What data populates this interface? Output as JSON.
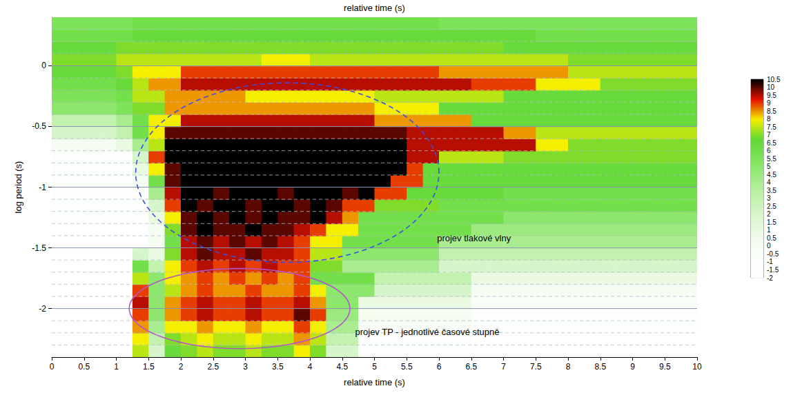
{
  "chart_data": {
    "type": "heatmap",
    "x_label": "relative time (s)",
    "x2_label": "relative time (s)",
    "y_label": "log period (s)",
    "xlim": [
      0,
      10
    ],
    "xticks": [
      0,
      0.5,
      1,
      1.5,
      2,
      2.5,
      3,
      3.5,
      4,
      4.5,
      5,
      5.5,
      6,
      6.5,
      7,
      7.5,
      8,
      8.5,
      9,
      9.5,
      10
    ],
    "ylim": [
      -2.4,
      0.4
    ],
    "yticks": [
      -2,
      -1.5,
      -1,
      -0.5,
      0
    ],
    "grid": true,
    "colorbar": {
      "range": [
        -2,
        10.5
      ],
      "ticks": [
        -2,
        -1.5,
        -1,
        -0.5,
        0,
        0.5,
        1,
        1.5,
        2,
        2.5,
        3,
        3.5,
        4,
        4.5,
        5,
        5.5,
        6,
        6.5,
        7,
        7.5,
        8,
        8.5,
        9,
        9.5,
        10,
        10.5
      ]
    },
    "annotations": [
      {
        "text": "projev tlakové vlny",
        "x": 5.97,
        "y": -1.42
      },
      {
        "text": "projev TP - jednotlivé časové stupně",
        "x": 4.7,
        "y": -2.19
      }
    ],
    "regions": [
      {
        "cx": 3.65,
        "cy": -0.88,
        "rx": 2.35,
        "ry": 0.74,
        "color": "#3b4fe0",
        "line_style": "dashed"
      },
      {
        "cx": 2.91,
        "cy": -2.0,
        "rx": 1.71,
        "ry": 0.33,
        "color": "#b455c8",
        "line_style": "solid"
      }
    ],
    "x": [
      0.125,
      0.375,
      0.625,
      0.875,
      1.125,
      1.375,
      1.625,
      1.875,
      2.125,
      2.375,
      2.625,
      2.875,
      3.125,
      3.375,
      3.625,
      3.875,
      4.125,
      4.375,
      4.625,
      4.875,
      5.125,
      5.375,
      5.625,
      5.875,
      6.125,
      6.375,
      6.625,
      6.875,
      7.125,
      7.375,
      7.625,
      7.875,
      8.125,
      8.375,
      8.625,
      8.875,
      9.125,
      9.375,
      9.625,
      9.875
    ],
    "y": [
      -2.35,
      -2.25,
      -2.15,
      -2.05,
      -1.95,
      -1.85,
      -1.75,
      -1.65,
      -1.55,
      -1.45,
      -1.35,
      -1.25,
      -1.15,
      -1.05,
      -0.95,
      -0.85,
      -0.75,
      -0.65,
      -0.55,
      -0.45,
      -0.35,
      -0.25,
      -0.15,
      -0.05,
      0.05,
      0.15,
      0.25,
      0.35
    ],
    "values": [
      [
        -2,
        -2,
        -2,
        -2,
        -2,
        7.5,
        2,
        6.5,
        7,
        7.5,
        7,
        7,
        7.5,
        7,
        7,
        8,
        7,
        2,
        2,
        -1.5,
        -1.5,
        -1.5,
        -1.5,
        -1.5,
        -1.5,
        -1.5,
        -2,
        -2,
        -2,
        -2,
        -2,
        -2,
        -2,
        -2,
        -2,
        -2,
        -2,
        -2,
        -2,
        -2
      ],
      [
        -2,
        -2,
        -2,
        -2,
        -2,
        8,
        3,
        7,
        7.5,
        8,
        7.5,
        7.5,
        8,
        7.5,
        7.5,
        8.5,
        7.5,
        3,
        3,
        -1,
        -1,
        -1,
        -1,
        -1,
        -1,
        -1,
        -2,
        -2,
        -2,
        -2,
        -2,
        -2,
        -2,
        -2,
        -2,
        -2,
        -2,
        -2,
        -2,
        -2
      ],
      [
        -2,
        -2,
        -2,
        -2,
        -2,
        8.5,
        4,
        8,
        8,
        8.5,
        8,
        8,
        8.5,
        8,
        8,
        9,
        8,
        4,
        4,
        -0.5,
        -0.5,
        -0.5,
        -0.5,
        -0.5,
        -0.5,
        -0.5,
        -1.5,
        -1.5,
        -1.5,
        -1.5,
        -1.5,
        -1.5,
        -1.5,
        -1.5,
        -1.5,
        -1.5,
        -1.5,
        -1.5,
        -1.5,
        -1.5
      ],
      [
        -2,
        -2,
        -2,
        -2,
        -2,
        9,
        5,
        8.5,
        9,
        9.5,
        9,
        9,
        9.5,
        9,
        9,
        10,
        9,
        4.5,
        4.5,
        0,
        0,
        0,
        0,
        0,
        0,
        0,
        -1,
        -1,
        -1,
        -1,
        -1,
        -1,
        -1,
        -1,
        -1,
        -1,
        -1,
        -1,
        -1,
        -1
      ],
      [
        -2,
        -2,
        -2,
        -2,
        -2,
        9.5,
        5,
        8.5,
        9,
        9.5,
        9,
        9,
        9.5,
        9,
        9,
        9.5,
        8.5,
        5,
        5,
        1,
        1,
        1,
        1,
        1,
        1,
        1,
        -0.5,
        -0.5,
        -0.5,
        -0.5,
        -0.5,
        -0.5,
        -0.5,
        -0.5,
        -0.5,
        -0.5,
        -0.5,
        -0.5,
        -0.5,
        -0.5
      ],
      [
        -2,
        -2,
        -2,
        -2,
        -2,
        9,
        5,
        7.5,
        8.5,
        9,
        8.5,
        8.5,
        9,
        8.5,
        8.5,
        9,
        8,
        5,
        5,
        5,
        2,
        2,
        2,
        2,
        2,
        2,
        0,
        0,
        0,
        0,
        0,
        0,
        0,
        0,
        0,
        0,
        0,
        0,
        0,
        0
      ],
      [
        -2,
        -2,
        -2,
        -2,
        -2,
        7.5,
        5,
        8,
        8.5,
        9,
        8.5,
        9,
        8.5,
        9,
        8.5,
        9,
        6,
        6,
        6,
        6,
        3,
        3,
        3,
        3,
        3,
        3,
        1,
        1,
        1,
        1,
        1,
        1,
        1,
        1,
        1,
        1,
        1,
        1,
        1,
        1
      ],
      [
        -2,
        -2,
        -2,
        -2,
        -2,
        6,
        3,
        8,
        9,
        9.5,
        9,
        9.5,
        9,
        9.5,
        9,
        9,
        7,
        7,
        4,
        4,
        4,
        4,
        4,
        4,
        2,
        2,
        2,
        2,
        2,
        2,
        2,
        2,
        2,
        2,
        2,
        2,
        2,
        2,
        2,
        2
      ],
      [
        -2,
        -2,
        -2,
        -2,
        -2,
        2,
        1,
        7,
        9.5,
        10,
        9.5,
        9.5,
        10,
        9.5,
        9.5,
        9,
        7.5,
        7.5,
        5,
        5,
        5,
        5,
        5,
        5,
        3,
        3,
        3,
        3,
        3,
        3,
        3,
        3,
        3,
        3,
        3,
        3,
        3,
        3,
        3,
        3
      ],
      [
        -2,
        -2,
        -2,
        -2,
        -2,
        -2,
        0,
        6,
        9.5,
        10,
        9.5,
        10,
        9.5,
        10,
        9.5,
        9,
        8,
        8,
        6,
        6,
        6,
        6,
        6,
        6,
        4,
        4,
        4,
        4,
        4,
        4,
        4,
        4,
        4,
        4,
        4,
        4,
        4,
        4,
        4,
        4
      ],
      [
        -2,
        -2,
        -2,
        -2,
        -2,
        -2,
        0,
        7,
        10,
        10.5,
        10,
        10,
        10.5,
        10,
        10,
        9.5,
        9,
        8,
        8,
        6,
        6,
        6,
        6,
        6,
        6,
        6,
        4.5,
        4.5,
        4.5,
        4.5,
        4.5,
        4.5,
        4.5,
        4.5,
        4.5,
        4.5,
        4.5,
        4.5,
        4.5,
        4.5
      ],
      [
        -1.5,
        -1.5,
        -1.5,
        -1.5,
        -1.5,
        -1.5,
        1,
        8,
        10,
        10.5,
        10,
        10.5,
        10,
        10.5,
        10,
        10,
        10.5,
        9.5,
        8.5,
        6,
        6,
        6,
        6,
        6,
        6,
        6,
        6,
        6,
        5,
        5,
        5,
        5,
        5,
        5,
        5,
        5,
        5,
        5,
        5,
        5
      ],
      [
        -1.5,
        -1.5,
        -1.5,
        -1.5,
        -1.5,
        -1.5,
        2,
        9,
        10.5,
        10,
        10.5,
        10.5,
        10,
        10.5,
        10.5,
        10,
        10.5,
        10,
        9,
        9,
        7,
        7,
        7,
        7,
        6,
        6,
        6,
        6,
        6,
        6,
        6,
        6,
        6,
        6,
        6,
        6,
        6,
        6,
        6,
        6
      ],
      [
        -1,
        -1,
        -1,
        -1,
        -1,
        -1,
        4,
        9.5,
        10.5,
        10.5,
        10,
        10.5,
        10.5,
        10.5,
        10,
        10.5,
        10.5,
        10.5,
        10,
        10.5,
        9,
        9,
        6.5,
        6.5,
        6.5,
        6.5,
        6.5,
        6.5,
        6,
        6,
        6,
        6,
        6,
        6,
        6,
        6,
        6,
        6,
        6,
        6
      ],
      [
        -1,
        -1,
        -1,
        -1,
        -1,
        0,
        6,
        10,
        10.5,
        10.5,
        10.5,
        10.5,
        10.5,
        10.5,
        10.5,
        10.5,
        10.5,
        10.5,
        10.5,
        10.5,
        10.5,
        9,
        9,
        6.5,
        6.5,
        6.5,
        6.5,
        6.5,
        6.5,
        6.5,
        6.5,
        6.5,
        6.5,
        6.5,
        6.5,
        6.5,
        6.5,
        6.5,
        6.5,
        6.5
      ],
      [
        -1,
        -1,
        -1,
        -1,
        -1,
        1,
        8,
        10,
        10.5,
        10.5,
        10.5,
        10.5,
        10.5,
        10.5,
        10.5,
        10.5,
        10.5,
        10.5,
        10.5,
        10.5,
        10.5,
        10.5,
        9,
        6.5,
        6.5,
        6.5,
        6.5,
        6.5,
        6.5,
        6.5,
        6.5,
        6.5,
        6.5,
        6.5,
        6.5,
        6.5,
        6.5,
        6.5,
        6.5,
        6.5
      ],
      [
        -1,
        -1,
        -1,
        -1,
        -1,
        2,
        9,
        10.5,
        10.5,
        10.5,
        10.5,
        10.5,
        10.5,
        10.5,
        10.5,
        10.5,
        10.5,
        10.5,
        10.5,
        10.5,
        10.5,
        10.5,
        9.5,
        9.5,
        7.5,
        7.5,
        7.5,
        7.5,
        7,
        7,
        7,
        7,
        7,
        7,
        7,
        7,
        7,
        7,
        7,
        7
      ],
      [
        0,
        0,
        0,
        0,
        1,
        4,
        7.5,
        10.5,
        10.5,
        10.5,
        10.5,
        10.5,
        10.5,
        10.5,
        10.5,
        10.5,
        10.5,
        10.5,
        10.5,
        10.5,
        10.5,
        10.5,
        9.5,
        9.5,
        9.5,
        9.5,
        9.5,
        9.5,
        9.5,
        9.5,
        8,
        8,
        7,
        7,
        7,
        7,
        7,
        7,
        7,
        7
      ],
      [
        2,
        2,
        2,
        2,
        3,
        6,
        8,
        10,
        10,
        10,
        10,
        10,
        10,
        10,
        10,
        10,
        10,
        10,
        10,
        10,
        10,
        10,
        9.5,
        9.5,
        9.5,
        9.5,
        9.5,
        9.5,
        8.5,
        8.5,
        7.5,
        7.5,
        7.5,
        7.5,
        7.5,
        7.5,
        7.5,
        7.5,
        7.5,
        7.5
      ],
      [
        3,
        3,
        3,
        3,
        4,
        6,
        8,
        8,
        9.5,
        9.5,
        9.5,
        9.5,
        9.5,
        9.5,
        9.5,
        9.5,
        9.5,
        9.5,
        9.5,
        9.5,
        8.5,
        8.5,
        8.5,
        8.5,
        8.5,
        8.5,
        6.5,
        6.5,
        6.5,
        6.5,
        6.5,
        6.5,
        6.5,
        6.5,
        6.5,
        6.5,
        6.5,
        6.5,
        6.5,
        6.5
      ],
      [
        5,
        5,
        5,
        5,
        5.5,
        7,
        7,
        8.5,
        8.5,
        8.5,
        8.5,
        8.5,
        8.5,
        8.5,
        8.5,
        8.5,
        8.5,
        8.5,
        8.5,
        8.5,
        8,
        8,
        8,
        8,
        6.5,
        6.5,
        6.5,
        6.5,
        6.5,
        6.5,
        6.5,
        6.5,
        6.5,
        6.5,
        6.5,
        6.5,
        6.5,
        6.5,
        6.5,
        6.5
      ],
      [
        5.5,
        5.5,
        5.5,
        5.5,
        6,
        7.5,
        7.5,
        8.5,
        8.5,
        8.5,
        8.5,
        8.5,
        8,
        8,
        8,
        8,
        8,
        8,
        8,
        8,
        7.5,
        7.5,
        7.5,
        7.5,
        7.5,
        7.5,
        7.5,
        7.5,
        6.5,
        6.5,
        6.5,
        6.5,
        6.5,
        6.5,
        6.5,
        6.5,
        6.5,
        6.5,
        6.5,
        6.5
      ],
      [
        6,
        6,
        6,
        6,
        6.5,
        7.5,
        8.5,
        8.5,
        9.5,
        9.5,
        9.5,
        9.5,
        9.5,
        9.5,
        9.5,
        9.5,
        9.5,
        9.5,
        9.5,
        9.5,
        9.5,
        9.5,
        9.5,
        9.5,
        9.5,
        9.5,
        9,
        9,
        9,
        9,
        8,
        8,
        8,
        8,
        7,
        7,
        7,
        7,
        7,
        7
      ],
      [
        6.5,
        6.5,
        6.5,
        6.5,
        7,
        8,
        8,
        8,
        9,
        9,
        9,
        9,
        9,
        9,
        9,
        9,
        9,
        9,
        9,
        9,
        9,
        9,
        9,
        9,
        8.5,
        8.5,
        8.5,
        8.5,
        8.5,
        8.5,
        8.5,
        8.5,
        7.5,
        7.5,
        7.5,
        7.5,
        7.5,
        7.5,
        7.5,
        7.5
      ],
      [
        7,
        7,
        7,
        7,
        7.5,
        7.5,
        7.5,
        7.5,
        7.5,
        7.5,
        7.5,
        7.5,
        7.5,
        8,
        8,
        8,
        7.5,
        7.5,
        7.5,
        7.5,
        7.5,
        7.5,
        7.5,
        7.5,
        7.5,
        7.5,
        7.5,
        7.5,
        7.5,
        7.5,
        7.5,
        7.5,
        7,
        7,
        7,
        7,
        7,
        7,
        7,
        7
      ],
      [
        6.5,
        6.5,
        6.5,
        6.5,
        7,
        7,
        7,
        7,
        7,
        7,
        7,
        7,
        7,
        7,
        7,
        7,
        7,
        7,
        7,
        7,
        7,
        7,
        7,
        7,
        7,
        7,
        7,
        7,
        6.5,
        6.5,
        6.5,
        6.5,
        6.5,
        6.5,
        6.5,
        6.5,
        6.5,
        6.5,
        6.5,
        6.5
      ],
      [
        6,
        6,
        6,
        6,
        6,
        6.5,
        6.5,
        6.5,
        6.5,
        6.5,
        6.5,
        6.5,
        6.5,
        6.5,
        6.5,
        6.5,
        6.5,
        6.5,
        6.5,
        6.5,
        6.5,
        6.5,
        6.5,
        6.5,
        6.5,
        6.5,
        6.5,
        6.5,
        6.5,
        6.5,
        6,
        6,
        6,
        6,
        6,
        6,
        6,
        6,
        6,
        6
      ],
      [
        5.5,
        5.5,
        5.5,
        5.5,
        5.5,
        6,
        6,
        6,
        6,
        6,
        6,
        6,
        6,
        6,
        6,
        6,
        6,
        6,
        6,
        6,
        6,
        6,
        6,
        6,
        5.5,
        5.5,
        5.5,
        5.5,
        5.5,
        5.5,
        5.5,
        5.5,
        5.5,
        5.5,
        5.5,
        5.5,
        5.5,
        5.5,
        5.5,
        5.5
      ]
    ]
  }
}
